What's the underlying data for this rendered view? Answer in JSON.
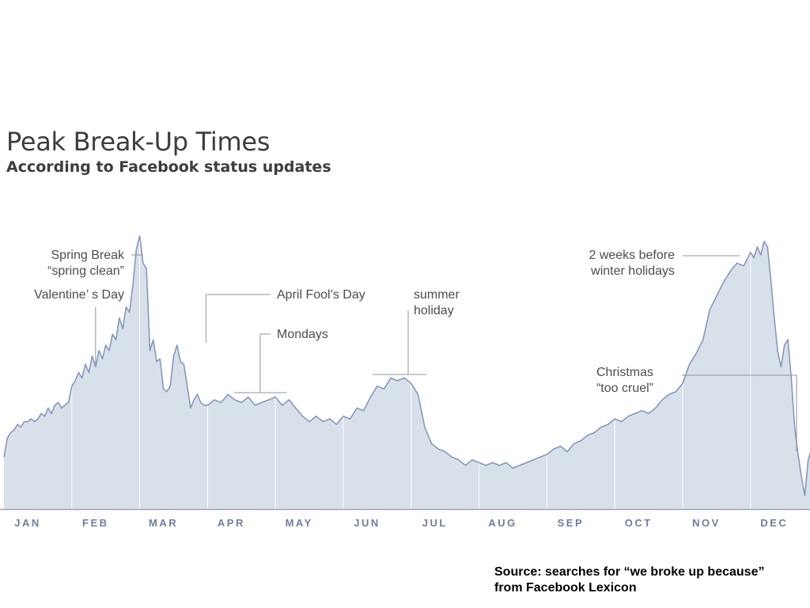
{
  "chart_data": {
    "type": "area",
    "title": "Peak Break-Up Times",
    "subtitle": "According to Facebook status updates",
    "xlabel": "",
    "ylabel": "",
    "categories": [
      "JAN",
      "FEB",
      "MAR",
      "APR",
      "MAY",
      "JUN",
      "JUL",
      "AUG",
      "SEP",
      "OCT",
      "NOV",
      "DEC"
    ],
    "x": [
      0,
      0.05,
      0.1,
      0.15,
      0.2,
      0.25,
      0.3,
      0.35,
      0.4,
      0.45,
      0.5,
      0.55,
      0.6,
      0.65,
      0.7,
      0.75,
      0.8,
      0.85,
      0.9,
      0.95,
      1,
      1.05,
      1.1,
      1.15,
      1.2,
      1.25,
      1.3,
      1.35,
      1.4,
      1.45,
      1.5,
      1.55,
      1.6,
      1.65,
      1.7,
      1.75,
      1.8,
      1.85,
      1.9,
      1.95,
      2,
      2.05,
      2.1,
      2.15,
      2.2,
      2.25,
      2.3,
      2.35,
      2.4,
      2.45,
      2.5,
      2.55,
      2.6,
      2.65,
      2.7,
      2.75,
      2.8,
      2.85,
      2.9,
      2.95,
      3,
      3.1,
      3.2,
      3.3,
      3.4,
      3.5,
      3.6,
      3.7,
      3.8,
      3.9,
      4,
      4.1,
      4.2,
      4.3,
      4.4,
      4.5,
      4.6,
      4.7,
      4.8,
      4.9,
      5,
      5.1,
      5.2,
      5.3,
      5.4,
      5.5,
      5.6,
      5.7,
      5.8,
      5.9,
      6,
      6.1,
      6.2,
      6.3,
      6.4,
      6.5,
      6.6,
      6.7,
      6.8,
      6.9,
      7,
      7.1,
      7.2,
      7.3,
      7.4,
      7.5,
      7.6,
      7.7,
      7.8,
      7.9,
      8,
      8.1,
      8.2,
      8.3,
      8.4,
      8.5,
      8.6,
      8.7,
      8.8,
      8.9,
      9,
      9.1,
      9.2,
      9.3,
      9.4,
      9.5,
      9.6,
      9.7,
      9.8,
      9.9,
      10,
      10.1,
      10.2,
      10.3,
      10.4,
      10.5,
      10.6,
      10.7,
      10.8,
      10.9,
      11,
      11.05,
      11.1,
      11.15,
      11.2,
      11.25,
      11.3,
      11.35,
      11.4,
      11.45,
      11.5,
      11.55,
      11.6,
      11.65,
      11.7,
      11.75,
      11.8,
      11.85,
      11.9,
      11.95
    ],
    "y": [
      19,
      26,
      28,
      29,
      31,
      30,
      32,
      32,
      33,
      32,
      33,
      35,
      34,
      37,
      35,
      38,
      39,
      37,
      38,
      39,
      45,
      47,
      50,
      48,
      53,
      50,
      56,
      52,
      58,
      55,
      60,
      58,
      64,
      62,
      70,
      66,
      74,
      72,
      82,
      95,
      100,
      90,
      88,
      58,
      62,
      54,
      55,
      44,
      43,
      45,
      56,
      60,
      54,
      53,
      45,
      37,
      40,
      42,
      39,
      38,
      38,
      40,
      39,
      42,
      40,
      39,
      41,
      38,
      39,
      40,
      41,
      38,
      40,
      37,
      34,
      32,
      34,
      32,
      33,
      31,
      34,
      33,
      37,
      36,
      41,
      45,
      44,
      48,
      47,
      48,
      46,
      42,
      30,
      24,
      22,
      21,
      19,
      18,
      16,
      18,
      17,
      16,
      17,
      16,
      17,
      15,
      16,
      17,
      18,
      19,
      20,
      22,
      23,
      21,
      24,
      25,
      27,
      28,
      30,
      31,
      33,
      32,
      34,
      35,
      36,
      35,
      37,
      40,
      42,
      43,
      46,
      53,
      57,
      62,
      73,
      78,
      83,
      87,
      90,
      89,
      94,
      92,
      96,
      93,
      98,
      96,
      84,
      70,
      58,
      52,
      60,
      62,
      48,
      30,
      20,
      12,
      5,
      18,
      22,
      21
    ],
    "ylim": [
      0,
      100
    ],
    "grid": false,
    "legend": "none",
    "annotations": [
      {
        "id": "spring-break",
        "text": [
          "Spring Break",
          "“spring clean”"
        ],
        "x": 2.0
      },
      {
        "id": "valentines",
        "text": [
          "Valentine’ s Day"
        ],
        "x": 1.35
      },
      {
        "id": "april-fools",
        "text": [
          "April Fool’s Day"
        ],
        "x": 3.0
      },
      {
        "id": "mondays",
        "text": [
          "Mondays"
        ],
        "x_range": [
          3.4,
          4.15
        ]
      },
      {
        "id": "summer-holiday",
        "text": [
          "summer",
          "holiday"
        ],
        "x_range": [
          5.5,
          6.25
        ]
      },
      {
        "id": "two-weeks-before",
        "text": [
          "2 weeks before",
          "winter holidays"
        ],
        "x": 10.9
      },
      {
        "id": "christmas",
        "text": [
          "Christmas",
          "“too cruel”"
        ],
        "x_range": [
          10.0,
          11.75
        ]
      }
    ],
    "colors": {
      "fill": "#d8e0ea",
      "line": "#8799bb",
      "axis": "#9aa3b5",
      "labels": "#6c7e9e"
    }
  },
  "footer": {
    "source_line1": "Source: searches for “we broke up because”",
    "source_line2": "from Facebook Lexicon"
  }
}
